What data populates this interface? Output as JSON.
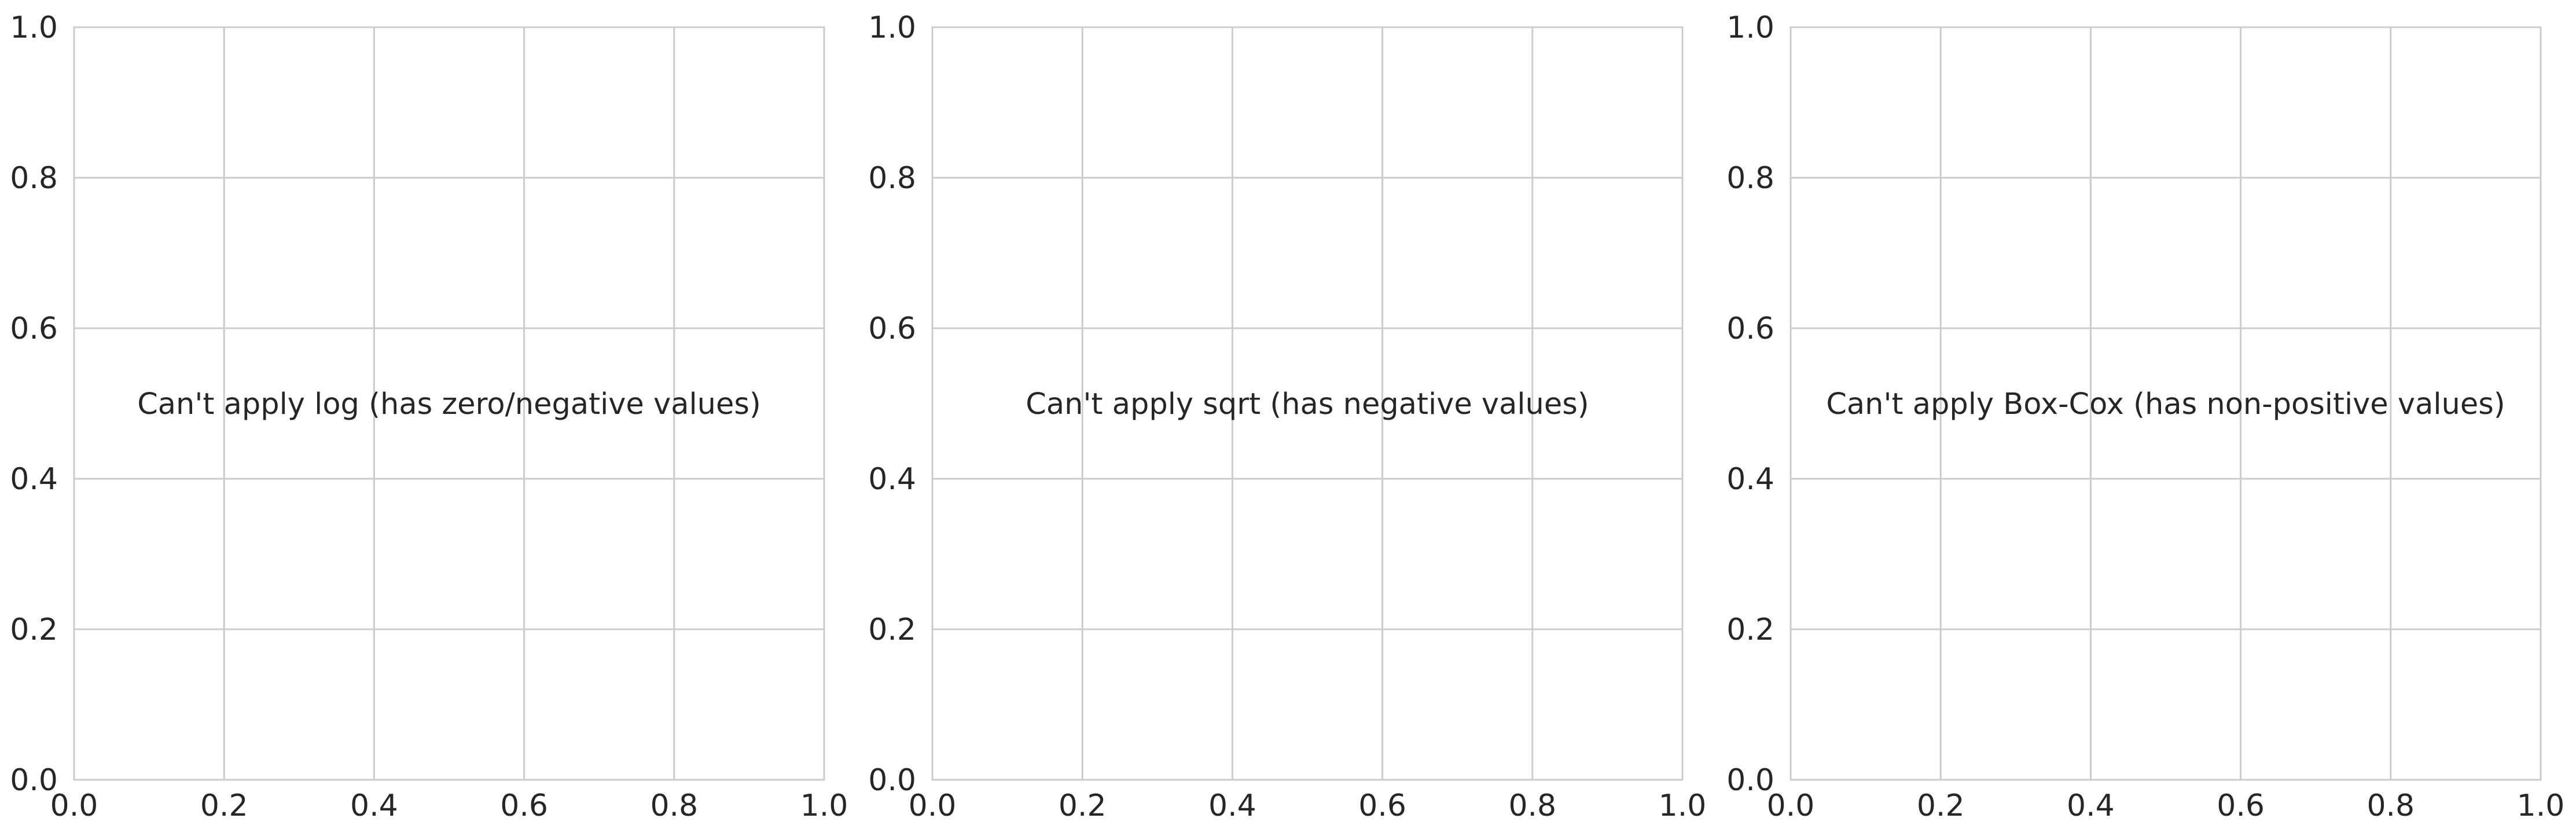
{
  "chart_data": [
    {
      "type": "scatter",
      "message": "Can't apply log (has zero/negative values)",
      "xlim": [
        0.0,
        1.0
      ],
      "ylim": [
        0.0,
        1.0
      ],
      "xticks": [
        "0.0",
        "0.2",
        "0.4",
        "0.6",
        "0.8",
        "1.0"
      ],
      "yticks": [
        "0.0",
        "0.2",
        "0.4",
        "0.6",
        "0.8",
        "1.0"
      ],
      "message_pos": [
        0.5,
        0.5
      ],
      "grid": true,
      "series": []
    },
    {
      "type": "scatter",
      "message": "Can't apply sqrt (has negative values)",
      "xlim": [
        0.0,
        1.0
      ],
      "ylim": [
        0.0,
        1.0
      ],
      "xticks": [
        "0.0",
        "0.2",
        "0.4",
        "0.6",
        "0.8",
        "1.0"
      ],
      "yticks": [
        "0.0",
        "0.2",
        "0.4",
        "0.6",
        "0.8",
        "1.0"
      ],
      "message_pos": [
        0.5,
        0.5
      ],
      "grid": true,
      "series": []
    },
    {
      "type": "scatter",
      "message": "Can't apply Box-Cox (has non-positive values)",
      "xlim": [
        0.0,
        1.0
      ],
      "ylim": [
        0.0,
        1.0
      ],
      "xticks": [
        "0.0",
        "0.2",
        "0.4",
        "0.6",
        "0.8",
        "1.0"
      ],
      "yticks": [
        "0.0",
        "0.2",
        "0.4",
        "0.6",
        "0.8",
        "1.0"
      ],
      "message_pos": [
        0.5,
        0.5
      ],
      "grid": true,
      "series": []
    }
  ],
  "colors": {
    "background": "#ffffff",
    "grid": "#cccccc",
    "spine": "#cccccc",
    "text": "#262626"
  }
}
